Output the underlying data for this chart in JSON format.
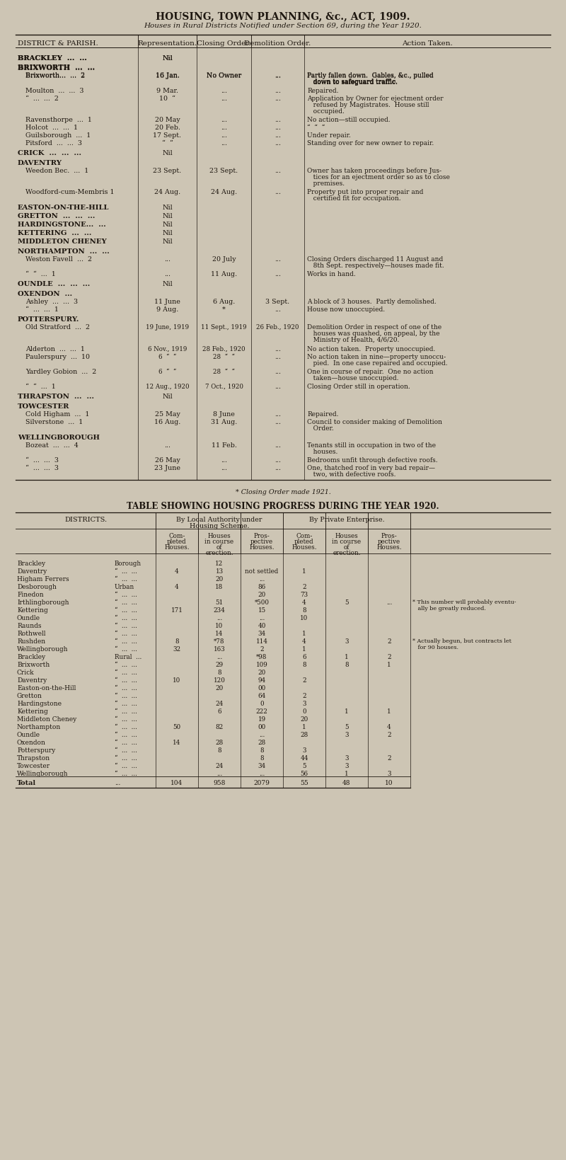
{
  "bg_color": "#cdc5b4",
  "text_color": "#1e1710",
  "title1": "HOUSING, TOWN PLANNING, &c., ACT, 1909.",
  "title2": "Houses in Rural Districts Notified under Section 69, during the Year 1920.",
  "footnote": "* Closing Order made 1921.",
  "table2_title": "TABLE SHOWING HOUSING PROGRESS DURING THE YEAR 1920."
}
